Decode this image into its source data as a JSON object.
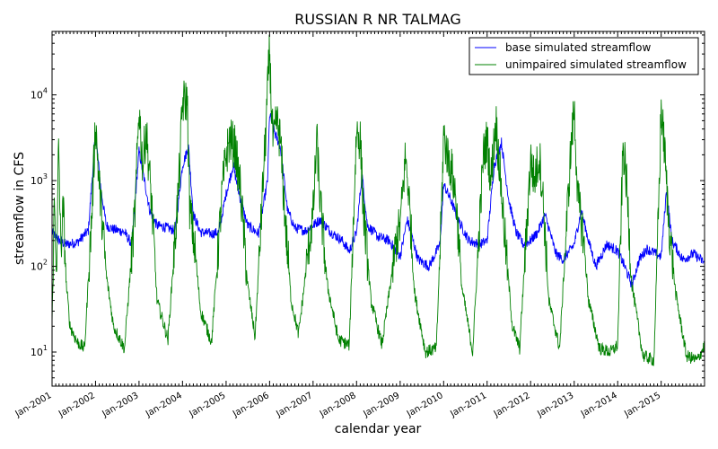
{
  "chart_data": {
    "type": "line",
    "title": "RUSSIAN R NR TALMAG",
    "xlabel": "calendar year",
    "ylabel": "streamflow in CFS",
    "x_range": [
      "2001-01-01",
      "2015-12-31"
    ],
    "ylim": [
      4,
      55000
    ],
    "yscale": "log",
    "y_ticks": [
      10,
      100,
      1000,
      10000
    ],
    "y_tick_labels": [
      "10^1",
      "10^2",
      "10^3",
      "10^4"
    ],
    "x_ticks": [
      "2001-01-01",
      "2002-01-01",
      "2003-01-01",
      "2004-01-01",
      "2005-01-01",
      "2006-01-01",
      "2007-01-01",
      "2008-01-01",
      "2009-01-01",
      "2010-01-01",
      "2011-01-01",
      "2012-01-01",
      "2013-01-01",
      "2014-01-01",
      "2015-01-01"
    ],
    "x_tick_labels": [
      "Jan-2001",
      "Jan-2002",
      "Jan-2003",
      "Jan-2004",
      "Jan-2005",
      "Jan-2006",
      "Jan-2007",
      "Jan-2008",
      "Jan-2009",
      "Jan-2010",
      "Jan-2011",
      "Jan-2012",
      "Jan-2013",
      "Jan-2014",
      "Jan-2015"
    ],
    "grid": false,
    "legend_position": "top-right",
    "series": [
      {
        "name": "base simulated streamflow",
        "color": "#0000ff",
        "points": [
          [
            "2001-01-01",
            250
          ],
          [
            "2001-03-01",
            200
          ],
          [
            "2001-05-01",
            180
          ],
          [
            "2001-08-01",
            190
          ],
          [
            "2001-11-01",
            260
          ],
          [
            "2002-01-01",
            3600
          ],
          [
            "2002-02-15",
            800
          ],
          [
            "2002-04-01",
            300
          ],
          [
            "2002-06-01",
            270
          ],
          [
            "2002-09-01",
            250
          ],
          [
            "2002-11-01",
            180
          ],
          [
            "2003-01-01",
            2200
          ],
          [
            "2003-02-15",
            1000
          ],
          [
            "2003-04-01",
            450
          ],
          [
            "2003-06-01",
            300
          ],
          [
            "2003-09-01",
            280
          ],
          [
            "2003-11-01",
            260
          ],
          [
            "2004-01-01",
            1500
          ],
          [
            "2004-02-20",
            2500
          ],
          [
            "2004-04-01",
            400
          ],
          [
            "2004-06-01",
            250
          ],
          [
            "2004-09-01",
            240
          ],
          [
            "2004-11-01",
            250
          ],
          [
            "2005-01-01",
            700
          ],
          [
            "2005-03-01",
            1500
          ],
          [
            "2005-05-01",
            600
          ],
          [
            "2005-07-01",
            300
          ],
          [
            "2005-10-01",
            240
          ],
          [
            "2005-12-15",
            1000
          ],
          [
            "2006-01-01",
            6000
          ],
          [
            "2006-02-15",
            3500
          ],
          [
            "2006-04-01",
            2500
          ],
          [
            "2006-06-01",
            450
          ],
          [
            "2006-08-01",
            280
          ],
          [
            "2006-11-01",
            260
          ],
          [
            "2007-01-01",
            300
          ],
          [
            "2007-03-01",
            350
          ],
          [
            "2007-06-01",
            250
          ],
          [
            "2007-09-01",
            200
          ],
          [
            "2007-11-01",
            150
          ],
          [
            "2008-01-01",
            250
          ],
          [
            "2008-02-15",
            1200
          ],
          [
            "2008-04-01",
            300
          ],
          [
            "2008-07-01",
            220
          ],
          [
            "2008-10-01",
            200
          ],
          [
            "2009-01-01",
            130
          ],
          [
            "2009-03-01",
            350
          ],
          [
            "2009-06-01",
            120
          ],
          [
            "2009-09-01",
            100
          ],
          [
            "2009-12-01",
            180
          ],
          [
            "2010-01-01",
            900
          ],
          [
            "2010-03-01",
            600
          ],
          [
            "2010-05-01",
            350
          ],
          [
            "2010-08-01",
            200
          ],
          [
            "2010-11-01",
            180
          ],
          [
            "2011-01-01",
            200
          ],
          [
            "2011-03-01",
            1500
          ],
          [
            "2011-05-01",
            2800
          ],
          [
            "2011-07-01",
            600
          ],
          [
            "2011-09-01",
            250
          ],
          [
            "2011-11-01",
            180
          ],
          [
            "2012-01-01",
            200
          ],
          [
            "2012-03-01",
            250
          ],
          [
            "2012-05-01",
            400
          ],
          [
            "2012-08-01",
            140
          ],
          [
            "2012-10-01",
            120
          ],
          [
            "2013-01-01",
            180
          ],
          [
            "2013-03-01",
            450
          ],
          [
            "2013-05-01",
            200
          ],
          [
            "2013-07-01",
            100
          ],
          [
            "2013-10-01",
            180
          ],
          [
            "2014-01-01",
            150
          ],
          [
            "2014-03-01",
            100
          ],
          [
            "2014-05-01",
            60
          ],
          [
            "2014-07-01",
            120
          ],
          [
            "2014-09-01",
            160
          ],
          [
            "2015-01-01",
            130
          ],
          [
            "2015-02-15",
            800
          ],
          [
            "2015-04-01",
            200
          ],
          [
            "2015-07-01",
            120
          ],
          [
            "2015-10-01",
            140
          ],
          [
            "2015-12-31",
            110
          ]
        ]
      },
      {
        "name": "unimpaired simulated streamflow",
        "color": "#008000",
        "points": [
          [
            "2001-01-01",
            20
          ],
          [
            "2001-01-20",
            600
          ],
          [
            "2001-02-10",
            80
          ],
          [
            "2001-02-25",
            3200
          ],
          [
            "2001-03-15",
            150
          ],
          [
            "2001-04-05",
            500
          ],
          [
            "2001-05-01",
            60
          ],
          [
            "2001-06-01",
            20
          ],
          [
            "2001-08-01",
            13
          ],
          [
            "2001-10-01",
            11
          ],
          [
            "2001-12-01",
            400
          ],
          [
            "2002-01-01",
            5000
          ],
          [
            "2002-02-01",
            900
          ],
          [
            "2002-03-01",
            300
          ],
          [
            "2002-04-01",
            80
          ],
          [
            "2002-06-01",
            20
          ],
          [
            "2002-09-01",
            11
          ],
          [
            "2002-12-01",
            500
          ],
          [
            "2003-01-01",
            7500
          ],
          [
            "2003-02-01",
            1500
          ],
          [
            "2003-03-01",
            4000
          ],
          [
            "2003-04-15",
            600
          ],
          [
            "2003-06-01",
            40
          ],
          [
            "2003-09-01",
            14
          ],
          [
            "2003-12-01",
            900
          ],
          [
            "2004-01-01",
            8000
          ],
          [
            "2004-02-10",
            9000
          ],
          [
            "2004-03-01",
            500
          ],
          [
            "2004-04-15",
            150
          ],
          [
            "2004-06-01",
            30
          ],
          [
            "2004-09-01",
            13
          ],
          [
            "2004-12-01",
            800
          ],
          [
            "2005-01-01",
            2000
          ],
          [
            "2005-02-01",
            3000
          ],
          [
            "2005-03-15",
            2500
          ],
          [
            "2005-05-01",
            800
          ],
          [
            "2005-07-01",
            60
          ],
          [
            "2005-09-01",
            15
          ],
          [
            "2005-12-01",
            4000
          ],
          [
            "2006-01-01",
            35000
          ],
          [
            "2006-01-15",
            8000
          ],
          [
            "2006-02-01",
            2500
          ],
          [
            "2006-03-01",
            5000
          ],
          [
            "2006-04-01",
            3000
          ],
          [
            "2006-05-15",
            300
          ],
          [
            "2006-07-01",
            40
          ],
          [
            "2006-09-01",
            16
          ],
          [
            "2006-12-01",
            200
          ],
          [
            "2007-01-01",
            400
          ],
          [
            "2007-02-01",
            3000
          ],
          [
            "2007-03-01",
            600
          ],
          [
            "2007-05-01",
            60
          ],
          [
            "2007-08-01",
            14
          ],
          [
            "2007-11-01",
            12
          ],
          [
            "2007-12-15",
            800
          ],
          [
            "2008-01-01",
            4000
          ],
          [
            "2008-02-01",
            3000
          ],
          [
            "2008-03-01",
            400
          ],
          [
            "2008-05-01",
            40
          ],
          [
            "2008-08-01",
            12
          ],
          [
            "2008-12-01",
            200
          ],
          [
            "2009-01-01",
            300
          ],
          [
            "2009-02-15",
            1900
          ],
          [
            "2009-03-15",
            700
          ],
          [
            "2009-05-01",
            50
          ],
          [
            "2009-08-01",
            10
          ],
          [
            "2009-11-01",
            11
          ],
          [
            "2009-12-15",
            500
          ],
          [
            "2010-01-01",
            3500
          ],
          [
            "2010-02-01",
            2000
          ],
          [
            "2010-03-15",
            1200
          ],
          [
            "2010-04-15",
            600
          ],
          [
            "2010-06-01",
            60
          ],
          [
            "2010-09-01",
            10
          ],
          [
            "2010-12-01",
            2000
          ],
          [
            "2011-01-01",
            3000
          ],
          [
            "2011-02-01",
            1000
          ],
          [
            "2011-03-15",
            5000
          ],
          [
            "2011-04-15",
            1500
          ],
          [
            "2011-06-01",
            200
          ],
          [
            "2011-08-01",
            20
          ],
          [
            "2011-10-01",
            11
          ],
          [
            "2011-12-01",
            300
          ],
          [
            "2012-01-01",
            1800
          ],
          [
            "2012-02-01",
            1000
          ],
          [
            "2012-03-15",
            2000
          ],
          [
            "2012-04-15",
            600
          ],
          [
            "2012-06-01",
            40
          ],
          [
            "2012-09-01",
            11
          ],
          [
            "2012-12-01",
            2000
          ],
          [
            "2013-01-01",
            7000
          ],
          [
            "2013-02-01",
            600
          ],
          [
            "2013-03-15",
            250
          ],
          [
            "2013-05-01",
            40
          ],
          [
            "2013-08-01",
            11
          ],
          [
            "2013-11-01",
            10
          ],
          [
            "2014-01-01",
            12
          ],
          [
            "2014-02-15",
            2500
          ],
          [
            "2014-03-15",
            1000
          ],
          [
            "2014-05-01",
            60
          ],
          [
            "2014-08-01",
            9
          ],
          [
            "2014-11-01",
            8
          ],
          [
            "2014-12-15",
            800
          ],
          [
            "2015-01-01",
            7200
          ],
          [
            "2015-02-01",
            2000
          ],
          [
            "2015-03-01",
            400
          ],
          [
            "2015-05-01",
            50
          ],
          [
            "2015-08-01",
            9
          ],
          [
            "2015-11-01",
            8
          ],
          [
            "2015-12-31",
            12
          ]
        ]
      }
    ]
  }
}
